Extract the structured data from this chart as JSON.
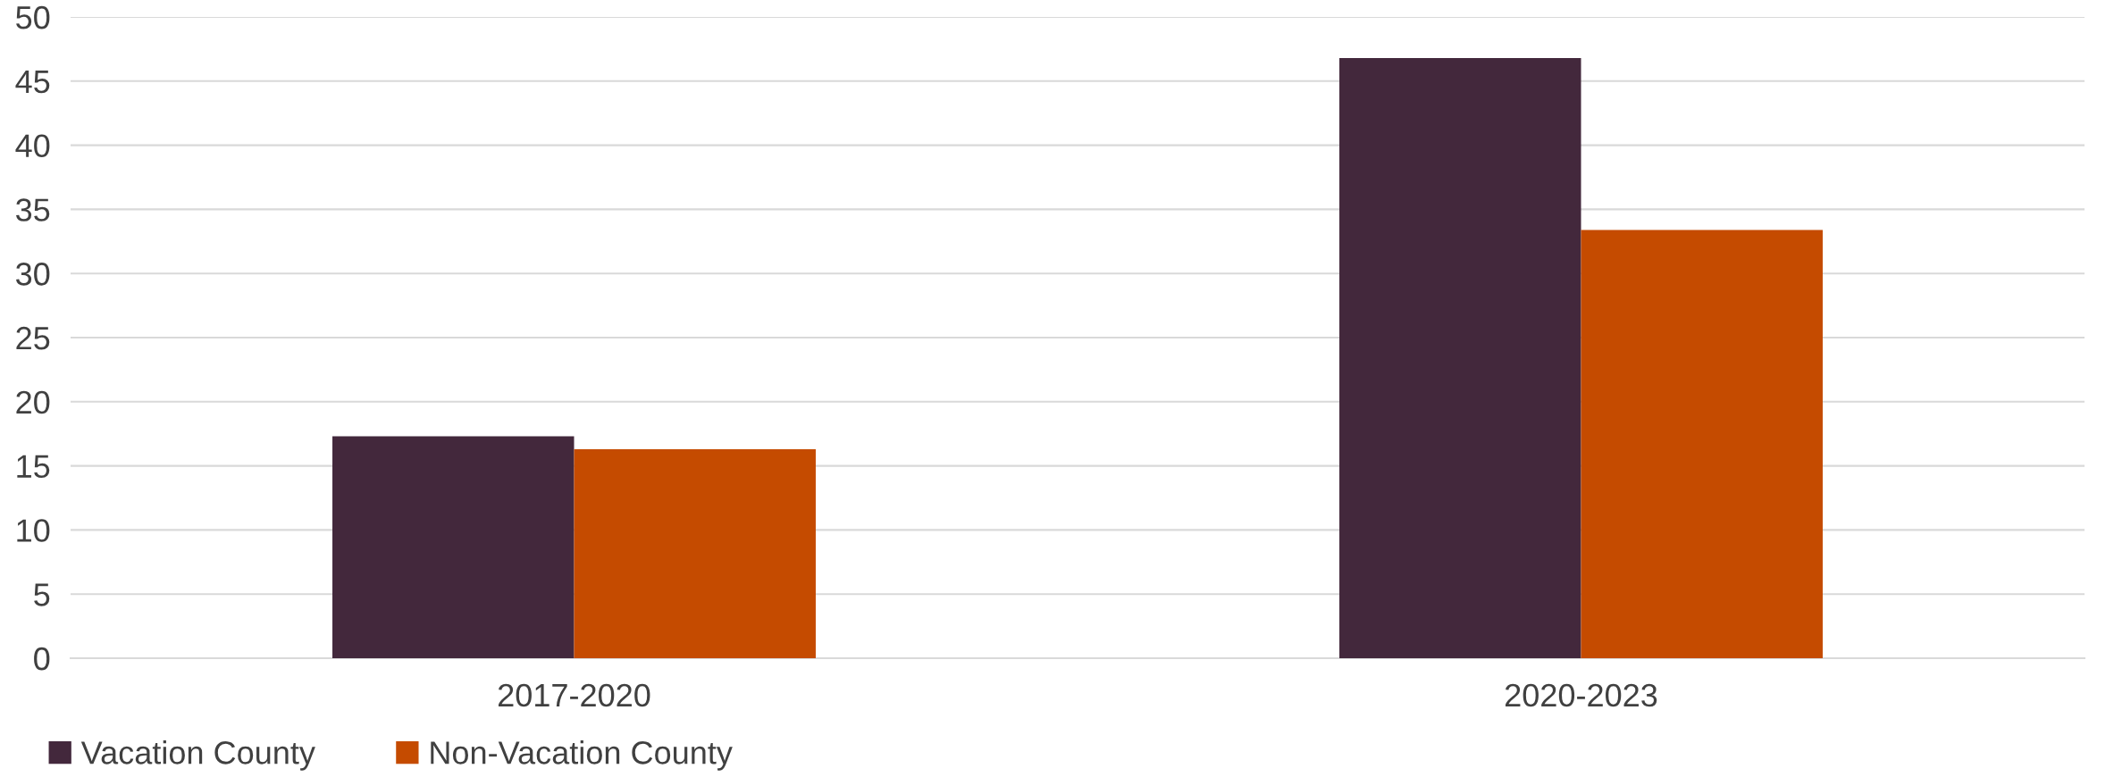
{
  "chart_data": {
    "type": "bar",
    "categories": [
      "2017-2020",
      "2020-2023"
    ],
    "series": [
      {
        "name": "Vacation County",
        "color": "#43283c",
        "values": [
          17.3,
          46.8
        ]
      },
      {
        "name": "Non-Vacation County",
        "color": "#c54b00",
        "values": [
          16.3,
          33.4
        ]
      }
    ],
    "ylim": [
      0,
      50
    ],
    "yticks": [
      0,
      5,
      10,
      15,
      20,
      25,
      30,
      35,
      40,
      45,
      50
    ],
    "grid": "y",
    "legend": "bottom left"
  }
}
